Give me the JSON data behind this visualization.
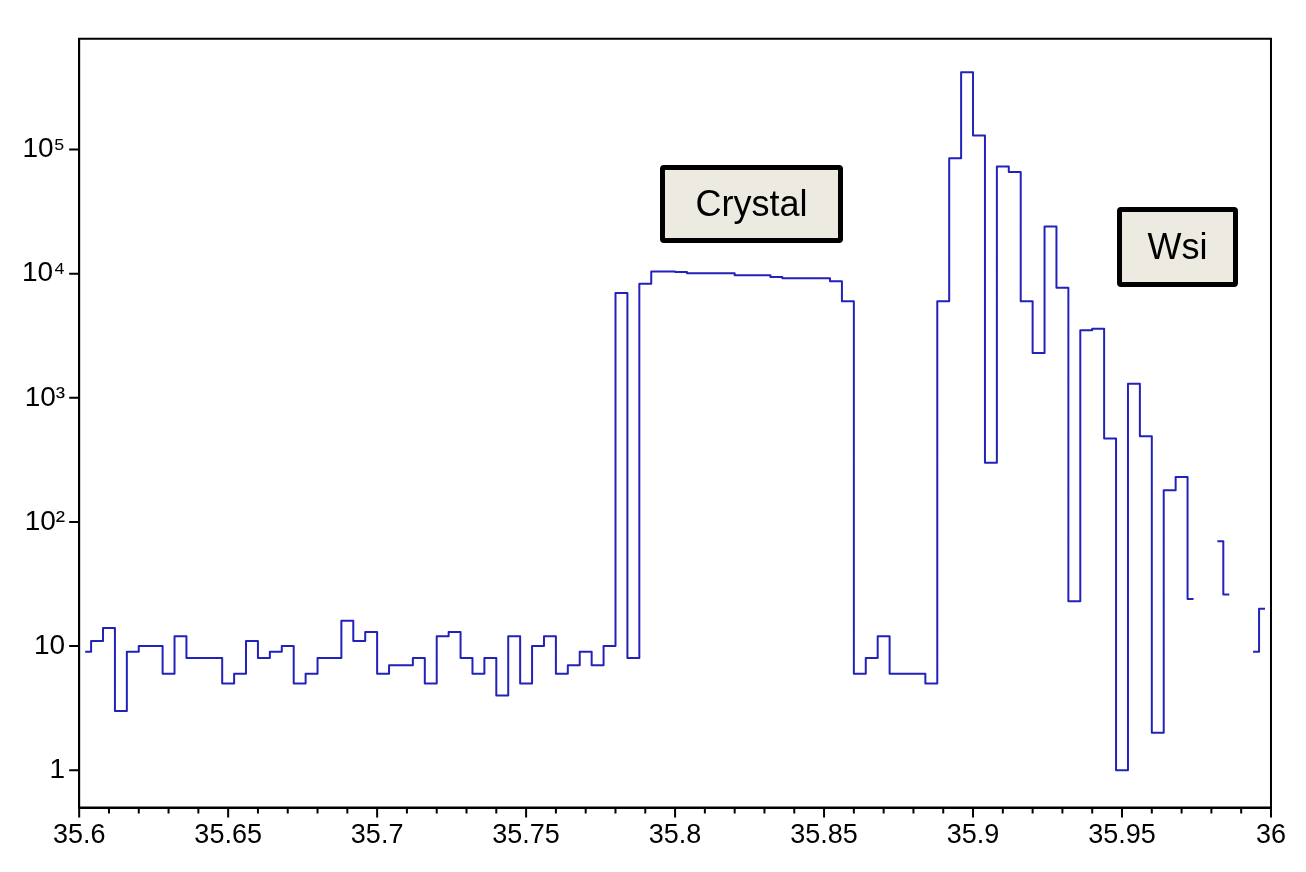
{
  "chart_data": {
    "type": "step",
    "x": [
      35.602,
      35.606,
      35.61,
      35.614,
      35.618,
      35.622,
      35.626,
      35.63,
      35.634,
      35.638,
      35.642,
      35.646,
      35.65,
      35.654,
      35.658,
      35.662,
      35.666,
      35.67,
      35.674,
      35.678,
      35.682,
      35.686,
      35.69,
      35.694,
      35.698,
      35.702,
      35.706,
      35.71,
      35.714,
      35.718,
      35.722,
      35.726,
      35.73,
      35.734,
      35.738,
      35.742,
      35.746,
      35.75,
      35.754,
      35.758,
      35.762,
      35.766,
      35.77,
      35.774,
      35.778,
      35.782,
      35.786,
      35.79,
      35.794,
      35.798,
      35.802,
      35.806,
      35.81,
      35.814,
      35.818,
      35.822,
      35.826,
      35.83,
      35.834,
      35.838,
      35.842,
      35.846,
      35.85,
      35.854,
      35.858,
      35.862,
      35.866,
      35.87,
      35.874,
      35.878,
      35.882,
      35.886,
      35.89,
      35.894,
      35.898,
      35.902,
      35.906,
      35.91,
      35.914,
      35.918,
      35.922,
      35.926,
      35.93,
      35.934,
      35.938,
      35.942,
      35.946,
      35.95,
      35.954,
      35.958,
      35.962,
      35.966,
      35.97,
      35.974,
      35.978,
      35.982,
      35.986,
      35.99,
      35.994,
      35.998
    ],
    "values": [
      9,
      11,
      14,
      3,
      9,
      10,
      10,
      6,
      12,
      8,
      8,
      8,
      5,
      6,
      11,
      8,
      9,
      10,
      5,
      6,
      8,
      8,
      16,
      11,
      13,
      6,
      7,
      7,
      8,
      5,
      12,
      13,
      8,
      6,
      8,
      4,
      12,
      5,
      10,
      12,
      6,
      7,
      9,
      7,
      10,
      7000,
      8,
      8300,
      10400,
      10400,
      10300,
      10100,
      10100,
      10100,
      10100,
      9700,
      9700,
      9700,
      9400,
      9200,
      9200,
      9200,
      9200,
      8700,
      6000,
      6,
      8,
      12,
      6,
      6,
      6,
      5,
      6000,
      85000,
      420000,
      130000,
      300,
      73000,
      66000,
      6000,
      2300,
      24000,
      7700,
      23,
      3500,
      3600,
      470,
      1,
      1300,
      490,
      2,
      180,
      230,
      24,
      null,
      70,
      26,
      null,
      9,
      20
    ],
    "color": "#2222bb",
    "xlim": [
      35.6,
      36
    ],
    "xticks": [
      35.6,
      {
        "value": 35.61,
        "label": null
      },
      {
        "value": 35.62,
        "label": null
      },
      {
        "value": 35.63,
        "label": null
      },
      {
        "value": 35.64,
        "label": null
      },
      35.65,
      {
        "value": 35.66,
        "label": null
      },
      {
        "value": 35.67,
        "label": null
      },
      {
        "value": 35.68,
        "label": null
      },
      {
        "value": 35.69,
        "label": null
      },
      35.7,
      {
        "value": 35.71,
        "label": null
      },
      {
        "value": 35.72,
        "label": null
      },
      {
        "value": 35.73,
        "label": null
      },
      {
        "value": 35.74,
        "label": null
      },
      35.75,
      {
        "value": 35.76,
        "label": null
      },
      {
        "value": 35.77,
        "label": null
      },
      {
        "value": 35.78,
        "label": null
      },
      {
        "value": 35.79,
        "label": null
      },
      35.8,
      {
        "value": 35.81,
        "label": null
      },
      {
        "value": 35.82,
        "label": null
      },
      {
        "value": 35.83,
        "label": null
      },
      {
        "value": 35.84,
        "label": null
      },
      35.85,
      {
        "value": 35.86,
        "label": null
      },
      {
        "value": 35.87,
        "label": null
      },
      {
        "value": 35.88,
        "label": null
      },
      {
        "value": 35.89,
        "label": null
      },
      35.9,
      {
        "value": 35.91,
        "label": null
      },
      {
        "value": 35.92,
        "label": null
      },
      {
        "value": 35.93,
        "label": null
      },
      {
        "value": 35.94,
        "label": null
      },
      35.95,
      {
        "value": 35.96,
        "label": null
      },
      {
        "value": 35.97,
        "label": null
      },
      {
        "value": 35.98,
        "label": null
      },
      {
        "value": 35.99,
        "label": null
      },
      36
    ],
    "ylim": [
      0.5,
      780000
    ],
    "yticks": [
      1,
      10,
      {
        "value": 100,
        "label": "10²"
      },
      {
        "value": 1000,
        "label": "10³"
      },
      {
        "value": 10000,
        "label": "10⁴"
      },
      {
        "value": 100000,
        "label": "10⁵"
      }
    ],
    "log": "y",
    "grid": false,
    "legend": false,
    "annotations": [
      "Crystal",
      "Wsi"
    ]
  }
}
